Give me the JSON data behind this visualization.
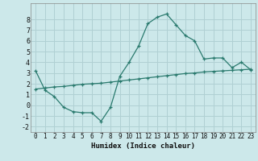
{
  "title": "",
  "xlabel": "Humidex (Indice chaleur)",
  "background_color": "#cce8ea",
  "grid_color": "#b0d0d3",
  "line_color": "#2a7a6e",
  "line1_x": [
    0,
    1,
    2,
    3,
    4,
    5,
    6,
    7,
    8,
    9,
    10,
    11,
    12,
    13,
    14,
    15,
    16,
    17,
    18,
    19,
    20,
    21,
    22,
    23
  ],
  "line1_y": [
    3.2,
    1.4,
    0.8,
    -0.2,
    -0.6,
    -0.7,
    -0.7,
    -1.5,
    -0.2,
    2.7,
    4.0,
    5.5,
    7.6,
    8.2,
    8.5,
    7.5,
    6.5,
    6.0,
    4.3,
    4.4,
    4.4,
    3.5,
    4.0,
    3.3
  ],
  "line2_x": [
    0,
    1,
    2,
    3,
    4,
    5,
    6,
    7,
    8,
    9,
    10,
    11,
    12,
    13,
    14,
    15,
    16,
    17,
    18,
    19,
    20,
    21,
    22,
    23
  ],
  "line2_y": [
    1.5,
    1.6,
    1.7,
    1.75,
    1.85,
    1.95,
    2.0,
    2.05,
    2.15,
    2.25,
    2.35,
    2.45,
    2.55,
    2.65,
    2.75,
    2.85,
    2.95,
    3.0,
    3.1,
    3.15,
    3.2,
    3.25,
    3.3,
    3.35
  ],
  "ylim": [
    -2.5,
    9.5
  ],
  "xlim": [
    -0.5,
    23.5
  ],
  "yticks": [
    -2,
    -1,
    0,
    1,
    2,
    3,
    4,
    5,
    6,
    7,
    8
  ],
  "xticks": [
    0,
    1,
    2,
    3,
    4,
    5,
    6,
    7,
    8,
    9,
    10,
    11,
    12,
    13,
    14,
    15,
    16,
    17,
    18,
    19,
    20,
    21,
    22,
    23
  ],
  "xlabel_fontsize": 6.5,
  "tick_fontsize": 5.5
}
